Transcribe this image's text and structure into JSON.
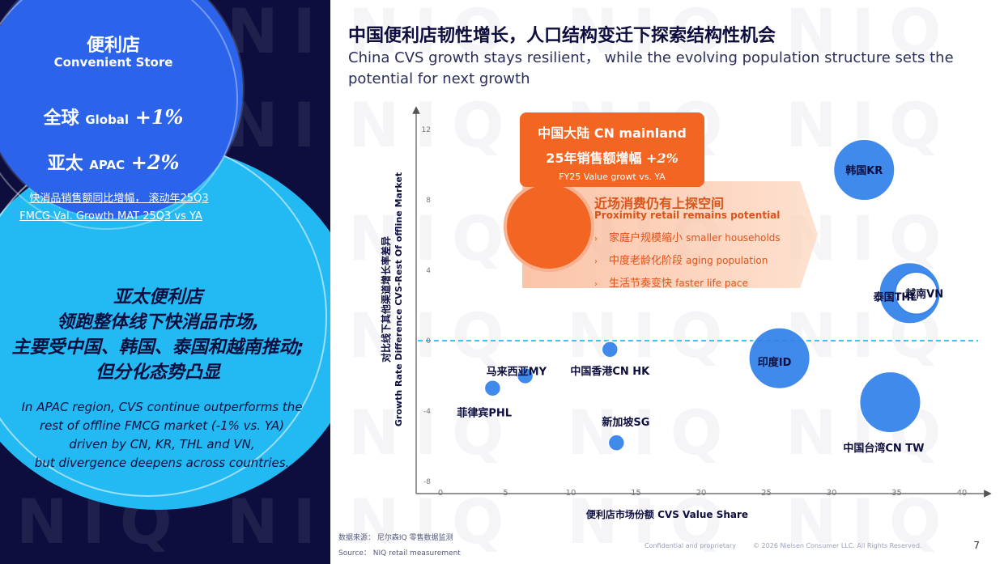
{
  "watermark": "NIQ",
  "left": {
    "store_cn": "便利店",
    "store_en": "Convenient Store",
    "global_cn": "全球",
    "global_en": "Global",
    "global_val": "+1%",
    "apac_cn": "亚太",
    "apac_en": "APAC",
    "apac_val": "+2%",
    "fmcg_cn": "快消品销售额同比增幅， 滚动年25Q3",
    "fmcg_en": "FMCG Val. Growth MAT 25Q3 vs YA",
    "apac_head_lines": [
      "亚太便利店",
      "领跑整体线下快消品市场,",
      "主要受中国、韩国、泰国和越南推动;",
      "但分化态势凸显"
    ],
    "apac_body_lines": [
      "In APAC region, CVS continue outperforms the",
      "rest of offline FMCG market (-1% vs. YA)",
      "driven by CN, KR, THL and VN,",
      "but divergence deepens across countries."
    ]
  },
  "title": {
    "cn": "中国便利店韧性增长，人口结构变迁下探索结构性机会",
    "en": "China CVS growth stays resilient， while the evolving population structure sets the potential for next growth"
  },
  "callout": {
    "line1": "中国大陆 CN mainland",
    "line2_text": "25年销售额增幅",
    "line2_val": "+2%",
    "line3": "FY25 Value growt vs. YA"
  },
  "proximity": {
    "cn": "近场消费仍有上探空间",
    "en": "Proximity retail remains  potential",
    "items": [
      {
        "cn": "家庭户规模缩小",
        "en": "smaller households"
      },
      {
        "cn": "中度老龄化阶段",
        "en": "aging population"
      },
      {
        "cn": "生活节奏变快",
        "en": "faster life pace"
      }
    ]
  },
  "chart_data": {
    "type": "bubble",
    "xlabel": "便利店市场份额 CVS Value Share",
    "ylabel_cn": "对比线下其他渠道增长率差异",
    "ylabel_en": "Growth Rate Difference CVS-Rest Of offline Market",
    "x_ticks": [
      0,
      5,
      10,
      15,
      20,
      25,
      30,
      35,
      40
    ],
    "y_ticks": [
      12,
      8,
      4,
      0,
      -4,
      -8
    ],
    "xlim": [
      0,
      40
    ],
    "ylim": [
      -8,
      12
    ],
    "reference_line_y": 0,
    "points": [
      {
        "label": "韩国KR",
        "x": 32.5,
        "y": 9.7,
        "size": "large",
        "color": "#2f80e8"
      },
      {
        "label": "泰国THL",
        "x": 36.0,
        "y": 2.7,
        "size": "large",
        "color": "#2f80e8"
      },
      {
        "label": "越南VN",
        "x": 36.5,
        "y": 2.7,
        "size": "small",
        "color": "#ffffff"
      },
      {
        "label": "印度ID",
        "x": 26.0,
        "y": -1.0,
        "size": "large",
        "color": "#2f80e8"
      },
      {
        "label": "中国台湾CN TW",
        "x": 34.5,
        "y": -3.5,
        "size": "large",
        "color": "#2f80e8"
      },
      {
        "label": "中国香港CN HK",
        "x": 13.0,
        "y": -0.5,
        "size": "small",
        "color": "#2f80e8"
      },
      {
        "label": "马来西亚MY",
        "x": 6.5,
        "y": -2.0,
        "size": "small",
        "color": "#2f80e8"
      },
      {
        "label": "菲律宾PHL",
        "x": 4.0,
        "y": -2.7,
        "size": "small",
        "color": "#2f80e8"
      },
      {
        "label": "新加坡SG",
        "x": 13.5,
        "y": -5.8,
        "size": "small",
        "color": "#2f80e8"
      }
    ]
  },
  "footer": {
    "source_cn": "数据来源： 尼尔森IQ 零售数据监测",
    "source_en": "Source：  NIQ retail measurement",
    "confidential": "Confidential and proprietary",
    "copyright": "© 2026 Nielsen Consumer LLC. All Rights Reserved.",
    "page": "7"
  },
  "colors": {
    "navy": "#0d0e3d",
    "blue": "#2b63ea",
    "cyan": "#23b9f2",
    "orange": "#f26522",
    "bubble": "#2f80e8",
    "refline": "#3ec5ee"
  }
}
